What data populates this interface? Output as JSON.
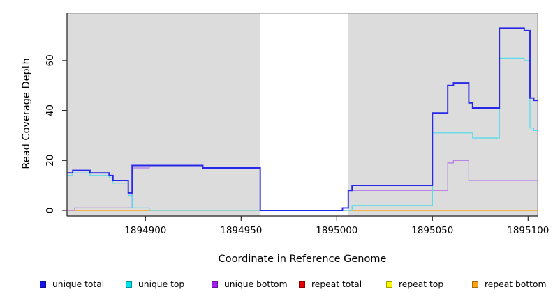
{
  "axes": {
    "xlabel": "Coordinate in Reference Genome",
    "ylabel": "Read Coverage Depth"
  },
  "chart_data": {
    "type": "line",
    "subtype": "step-coverage",
    "title": "",
    "xlabel": "Coordinate in Reference Genome",
    "ylabel": "Read Coverage Depth",
    "x_range": [
      1894859,
      1895105
    ],
    "ylim": [
      0,
      79
    ],
    "x_ticks": [
      1894900,
      1894950,
      1895000,
      1895050,
      1895100
    ],
    "y_ticks": [
      0,
      20,
      40,
      60
    ],
    "grid": false,
    "legend_position": "bottom",
    "shade_color": "#DCDCDC",
    "shaded_regions": [
      [
        1894859,
        1894960
      ],
      [
        1895006,
        1895105
      ]
    ],
    "unshaded_gap": [
      1894960,
      1895006
    ],
    "series": [
      {
        "name": "repeat total",
        "color": "#E40000",
        "width": 1.1,
        "points": [
          [
            1894859,
            0
          ]
        ]
      },
      {
        "name": "repeat top",
        "color": "#F8F800",
        "width": 1.1,
        "points": [
          [
            1894859,
            0
          ]
        ]
      },
      {
        "name": "repeat bottom",
        "color": "#FFA513",
        "width": 1.5,
        "points": [
          [
            1894859,
            0
          ]
        ]
      },
      {
        "name": "unique bottom",
        "color": "#B478E8",
        "width": 1.2,
        "points": [
          [
            1894859,
            0
          ],
          [
            1894863,
            1
          ],
          [
            1894893,
            17
          ],
          [
            1894902,
            18
          ],
          [
            1894930,
            17
          ],
          [
            1894960,
            0
          ],
          [
            1895003,
            1
          ],
          [
            1895006,
            8
          ],
          [
            1895058,
            19
          ],
          [
            1895061,
            20
          ],
          [
            1895069,
            12
          ]
        ]
      },
      {
        "name": "unique top",
        "color": "#4ADCEC",
        "width": 1.2,
        "points": [
          [
            1894859,
            14
          ],
          [
            1894862,
            15
          ],
          [
            1894871,
            14
          ],
          [
            1894881,
            13
          ],
          [
            1894883,
            11
          ],
          [
            1894891,
            6
          ],
          [
            1894893,
            1
          ],
          [
            1894902,
            0
          ],
          [
            1895008,
            2
          ],
          [
            1895050,
            31
          ],
          [
            1895071,
            29
          ],
          [
            1895085,
            61
          ],
          [
            1895098,
            60
          ],
          [
            1895101,
            33
          ],
          [
            1895103,
            32
          ]
        ]
      },
      {
        "name": "unique total",
        "color": "#2828E8",
        "width": 1.9,
        "points": [
          [
            1894859,
            15
          ],
          [
            1894862,
            16
          ],
          [
            1894871,
            15
          ],
          [
            1894881,
            14
          ],
          [
            1894883,
            12
          ],
          [
            1894891,
            7
          ],
          [
            1894893,
            18
          ],
          [
            1894930,
            17
          ],
          [
            1894960,
            0
          ],
          [
            1895003,
            1
          ],
          [
            1895006,
            8
          ],
          [
            1895008,
            10
          ],
          [
            1895050,
            39
          ],
          [
            1895058,
            50
          ],
          [
            1895061,
            51
          ],
          [
            1895069,
            43
          ],
          [
            1895071,
            41
          ],
          [
            1895085,
            73
          ],
          [
            1895098,
            72
          ],
          [
            1895101,
            45
          ],
          [
            1895103,
            44
          ]
        ]
      }
    ]
  },
  "legend": {
    "items": [
      {
        "label": "unique total",
        "color": "#1414E8"
      },
      {
        "label": "unique top",
        "color": "#00E0EE"
      },
      {
        "label": "unique bottom",
        "color": "#A020F0"
      },
      {
        "label": "repeat total",
        "color": "#E80000"
      },
      {
        "label": "repeat top",
        "color": "#F8F800"
      },
      {
        "label": "repeat bottom",
        "color": "#FFA513"
      }
    ]
  }
}
